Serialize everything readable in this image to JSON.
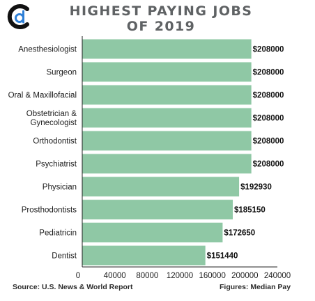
{
  "chart_data": {
    "type": "bar",
    "orientation": "horizontal",
    "title": "HIGHEST PAYING JOBS OF 2019",
    "title_lines": [
      "HIGHEST PAYING JOBS",
      "OF 2019"
    ],
    "categories": [
      "Anesthesiologist",
      "Surgeon",
      "Oral & Maxillofacial",
      "Obstetrician & Gynecologist",
      "Orthodontist",
      "Psychiatrist",
      "Physician",
      "Prosthodontists",
      "Pediatricin",
      "Dentist"
    ],
    "category_lines": [
      [
        "Anesthesiologist"
      ],
      [
        "Surgeon"
      ],
      [
        "Oral & Maxillofacial"
      ],
      [
        "Obstetrician &",
        "Gynecologist"
      ],
      [
        "Orthodontist"
      ],
      [
        "Psychiatrist"
      ],
      [
        "Physician"
      ],
      [
        "Prosthodontists"
      ],
      [
        "Pediatricin"
      ],
      [
        "Dentist"
      ]
    ],
    "values": [
      208000,
      208000,
      208000,
      208000,
      208000,
      208000,
      192930,
      185150,
      172650,
      151440
    ],
    "value_labels": [
      "$208000",
      "$208000",
      "$208000",
      "$208000",
      "$208000",
      "$208000",
      "$192930",
      "$185150",
      "$172650",
      "$151440"
    ],
    "xlim": [
      0,
      240000
    ],
    "xticks": [
      0,
      40000,
      80000,
      120000,
      160000,
      200000,
      240000
    ],
    "xtick_labels": [
      "0",
      "40000",
      "80000",
      "120000",
      "160000",
      "200000",
      "240000"
    ],
    "xlabel": "",
    "ylabel": "",
    "grid": false,
    "bar_color": "#8fc8a5"
  },
  "footer": {
    "source": "Source: U.S. News & World Report",
    "note": "Figures: Median Pay"
  },
  "colors": {
    "title": "#5f6264",
    "logo_dark": "#111111",
    "logo_blue": "#2f80d7"
  }
}
